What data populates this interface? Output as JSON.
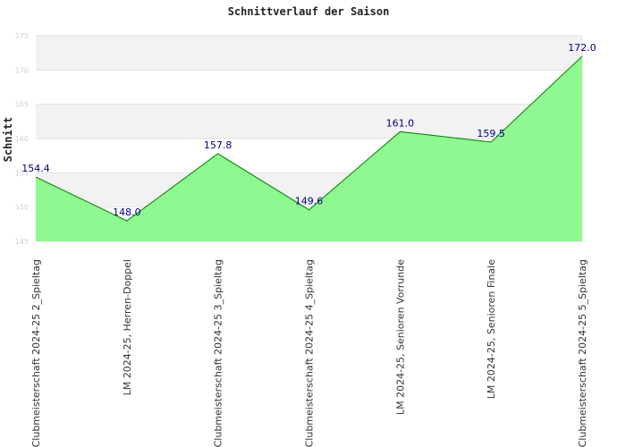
{
  "chart_data": {
    "type": "area",
    "title": "Schnittverlauf der Saison",
    "xlabel": "",
    "ylabel": "Schnitt",
    "ylim": [
      145,
      175
    ],
    "yticks": [
      145,
      150,
      155,
      160,
      165,
      170,
      175
    ],
    "categories": [
      "Clubmeisterschaft 2024-25  2_Spieltag",
      "LM 2024-25, Herren-Doppel",
      "Clubmeisterschaft 2024-25  3_Spieltag",
      "Clubmeisterschaft 2024-25  4_Spieltag",
      "LM 2024-25, Senioren Vorrunde",
      "LM 2024-25, Senioren Finale",
      "Clubmeisterschaft 2024-25  5_Spieltag"
    ],
    "values": [
      154.4,
      148.0,
      157.8,
      149.6,
      161.0,
      159.5,
      172.0
    ],
    "value_labels": [
      "154.4",
      "148.0",
      "157.8",
      "149.6",
      "161.0",
      "159.5",
      "172.0"
    ],
    "colors": {
      "fill": "#90f890",
      "line": "#008000",
      "labels": "#000080",
      "band": "#f2f2f2"
    }
  }
}
